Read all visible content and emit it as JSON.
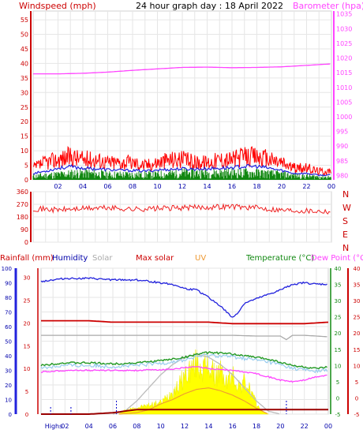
{
  "chart_data": [
    {
      "panel": "wind-pressure",
      "type": "line",
      "title": "24 hour graph day : 18 April 2022",
      "left_axis_label": "Windspeed (mph)",
      "right_axis_label": "Barometer (hpa)",
      "x_ticks": [
        "02",
        "04",
        "06",
        "08",
        "10",
        "12",
        "14",
        "16",
        "18",
        "20",
        "22",
        "00"
      ],
      "y_left_ticks": [
        0,
        5,
        10,
        15,
        20,
        25,
        30,
        35,
        40,
        45,
        50,
        55
      ],
      "y_left_range": [
        0,
        58
      ],
      "y_right_ticks": [
        980,
        985,
        990,
        995,
        1000,
        1005,
        1010,
        1015,
        1020,
        1025,
        1030,
        1035
      ],
      "y_right_range": [
        978.5,
        1036
      ],
      "x_range": [
        0,
        24
      ],
      "series": [
        {
          "key": "pressure",
          "axis": "right",
          "color": "#ff44ff",
          "x": [
            0,
            2,
            4,
            6,
            8,
            10,
            12,
            14,
            16,
            18,
            20,
            22,
            24
          ],
          "values": [
            1014.6,
            1014.6,
            1014.8,
            1015.2,
            1015.8,
            1016.3,
            1016.8,
            1016.9,
            1016.7,
            1016.8,
            1017.0,
            1017.5,
            1018.0
          ]
        },
        {
          "key": "gust",
          "axis": "left",
          "color": "#ff0000",
          "x": [
            0,
            1,
            2,
            3,
            4,
            5,
            6,
            7,
            8,
            9,
            10,
            11,
            12,
            13,
            14,
            15,
            16,
            17,
            18,
            19,
            20,
            21,
            22,
            23,
            24
          ],
          "values": [
            4,
            6,
            7,
            8,
            7,
            7,
            6,
            6,
            6,
            5,
            6,
            7,
            7,
            6,
            6,
            7,
            7,
            8,
            8,
            7,
            6,
            4,
            4,
            3,
            3
          ]
        },
        {
          "key": "average",
          "axis": "left",
          "color": "#2222dd",
          "x": [
            0,
            1,
            2,
            3,
            4,
            5,
            6,
            7,
            8,
            9,
            10,
            11,
            12,
            13,
            14,
            15,
            16,
            17,
            18,
            19,
            20,
            21,
            22,
            23,
            24
          ],
          "values": [
            2.2,
            3,
            4,
            4.5,
            4,
            3.8,
            3.5,
            3.3,
            3.2,
            3,
            3.4,
            3.6,
            3.8,
            3.7,
            3.8,
            4,
            4.2,
            4.6,
            4.6,
            4,
            3.2,
            2.2,
            2.2,
            1.6,
            1.6
          ]
        },
        {
          "key": "speed",
          "axis": "left",
          "color": "#118811",
          "x": [
            0,
            2,
            4,
            6,
            8,
            10,
            12,
            14,
            16,
            18,
            20,
            22,
            24
          ],
          "values": [
            1,
            1.5,
            2,
            1.5,
            1.5,
            1.5,
            2,
            2,
            2,
            2,
            1.5,
            1,
            0.8
          ]
        }
      ]
    },
    {
      "panel": "wind-direction",
      "type": "line",
      "x_range": [
        0,
        24
      ],
      "y_ticks": [
        0,
        90,
        180,
        270,
        360
      ],
      "y_range": [
        0,
        360
      ],
      "compass_labels": [
        "N",
        "W",
        "S",
        "E",
        "N"
      ],
      "series": [
        {
          "key": "direction",
          "color": "#ee2222",
          "x": [
            0,
            2,
            4,
            6,
            8,
            10,
            12,
            14,
            16,
            18,
            20,
            22,
            24
          ],
          "values": [
            240,
            230,
            240,
            245,
            235,
            240,
            245,
            250,
            255,
            245,
            230,
            225,
            220
          ]
        }
      ]
    },
    {
      "panel": "climate",
      "type": "line",
      "x_range": [
        0,
        24
      ],
      "headers": {
        "rainfall": "Rainfall (mm)",
        "humidity": "Humidity",
        "solar": "Solar",
        "max_solar": "Max solar",
        "uv": "UV",
        "temperature": "Temperature (°C)",
        "dew_point": "Dew Point (°C)"
      },
      "humidity_ticks": [
        0,
        10,
        20,
        30,
        40,
        50,
        60,
        70,
        80,
        90,
        100
      ],
      "rain_ticks": [
        0,
        5,
        10,
        15,
        20,
        25,
        30
      ],
      "temperature_ticks": [
        -5,
        0,
        5,
        10,
        15,
        20,
        25,
        30,
        35,
        40
      ],
      "x_labels": [
        "Highs",
        "02",
        "04",
        "06",
        "08",
        "10",
        "12",
        "14",
        "16",
        "18",
        "20",
        "22",
        "00"
      ],
      "series": [
        {
          "key": "max_solar",
          "color": "#bbbbbb",
          "x": [
            6,
            7,
            8,
            9,
            10,
            11,
            12,
            13,
            14,
            15,
            16,
            17,
            18,
            19,
            20
          ],
          "values": [
            0,
            2,
            9,
            18,
            27,
            34,
            39,
            41,
            39,
            34,
            27,
            18,
            9,
            2,
            0
          ]
        },
        {
          "key": "solar",
          "color": "#ffff00",
          "x": [
            6.5,
            7,
            8,
            9,
            10,
            10.5,
            11,
            11.5,
            12,
            12.5,
            13,
            13.5,
            14,
            14.5,
            15,
            15.5,
            16,
            16.5,
            17,
            17.5,
            18,
            18.5,
            19
          ],
          "values": [
            0,
            3,
            5,
            7,
            9,
            13,
            18,
            22,
            30,
            35,
            40,
            36,
            38,
            30,
            33,
            25,
            30,
            22,
            25,
            18,
            8,
            2,
            0
          ]
        },
        {
          "key": "uv",
          "color": "#ee9933",
          "x": [
            6.5,
            8,
            9,
            10,
            11,
            12,
            13,
            14,
            15,
            16,
            17,
            18,
            19
          ],
          "values": [
            0,
            1,
            3,
            7,
            10,
            14,
            17,
            18,
            16,
            13,
            9,
            4,
            0
          ]
        },
        {
          "key": "humidity",
          "color": "#2222dd",
          "x": [
            0,
            1,
            2,
            4,
            6,
            8,
            10,
            11,
            12,
            13,
            14,
            15,
            15.5,
            16,
            16.5,
            17,
            18,
            19,
            20,
            21,
            22,
            23,
            24
          ],
          "values": [
            91,
            92,
            93,
            93,
            92,
            92,
            90,
            89,
            86,
            85,
            80,
            74,
            70,
            66,
            70,
            76,
            79,
            82,
            85,
            89,
            90,
            89,
            89
          ]
        },
        {
          "key": "rain_line",
          "color": "#cc0000",
          "x": [
            0,
            2,
            4,
            6,
            8,
            10,
            12,
            14,
            16,
            18,
            20,
            22,
            24
          ],
          "values": [
            64,
            64,
            64,
            63,
            63,
            63,
            63,
            63,
            62,
            62,
            62,
            62,
            63
          ]
        },
        {
          "key": "solar_line",
          "color": "#aaaaaa",
          "x": [
            0,
            2,
            4,
            6,
            8,
            10,
            12,
            14,
            16,
            18,
            20,
            20.5,
            21,
            22,
            24
          ],
          "values": [
            54,
            54,
            54,
            54,
            54,
            54,
            54,
            54,
            54,
            53.5,
            53.5,
            51,
            54,
            54,
            53
          ]
        },
        {
          "key": "temperature",
          "color": "#229922",
          "x": [
            0,
            1,
            2,
            4,
            6,
            8,
            10,
            11,
            12,
            13,
            14,
            15,
            16,
            17,
            18,
            19,
            20,
            21,
            22,
            23,
            24
          ],
          "values": [
            10,
            10.5,
            10.8,
            10.8,
            10.5,
            10.8,
            11.5,
            12,
            12.5,
            13.5,
            14,
            13.8,
            13.5,
            13,
            12.5,
            12,
            11,
            10,
            9.5,
            9,
            9.5
          ]
        },
        {
          "key": "dew_point",
          "color": "#ff44ff",
          "x": [
            0,
            2,
            4,
            6,
            8,
            10,
            11,
            12,
            13,
            14,
            15,
            16,
            17,
            18,
            19,
            20,
            21,
            22,
            23,
            24
          ],
          "values": [
            8,
            8.5,
            8.5,
            8.5,
            8.5,
            8.7,
            8.9,
            9.3,
            9.6,
            9,
            8.8,
            8.5,
            8,
            7.5,
            6.5,
            5.5,
            5,
            5.5,
            6.5,
            7
          ]
        },
        {
          "key": "rain_rate",
          "color": "#990000",
          "x": [
            0,
            4,
            6,
            8,
            20,
            24
          ],
          "values": [
            0,
            0,
            0.3,
            1,
            1,
            1
          ]
        }
      ],
      "dotted_markers_x": [
        6.3,
        20.5
      ]
    }
  ]
}
